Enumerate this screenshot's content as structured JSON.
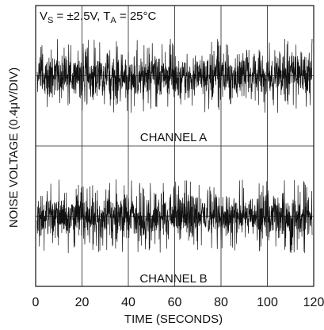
{
  "chart_data": {
    "type": "line",
    "conditions": {
      "prefix": "V",
      "sub1": "S",
      "middle": " = ±2.5V, T",
      "sub2": "A",
      "suffix": " = 25°C"
    },
    "xlabel": "TIME (SECONDS)",
    "ylabel": "NOISE VOLTAGE (0.4μV/DIV)",
    "xlim": [
      0,
      120
    ],
    "x_ticks": [
      "0",
      "20",
      "40",
      "60",
      "80",
      "100",
      "120"
    ],
    "y_divisions": 8,
    "grid": true,
    "y_unit_per_div": "0.4μV",
    "series": [
      {
        "name": "CHANNEL A",
        "center_div_from_top": 2.0,
        "band_pp_div": 1.2,
        "spike_pp_div": 2.1
      },
      {
        "name": "CHANNEL B",
        "center_div_from_top": 6.0,
        "band_pp_div": 1.2,
        "spike_pp_div": 2.1
      }
    ]
  }
}
